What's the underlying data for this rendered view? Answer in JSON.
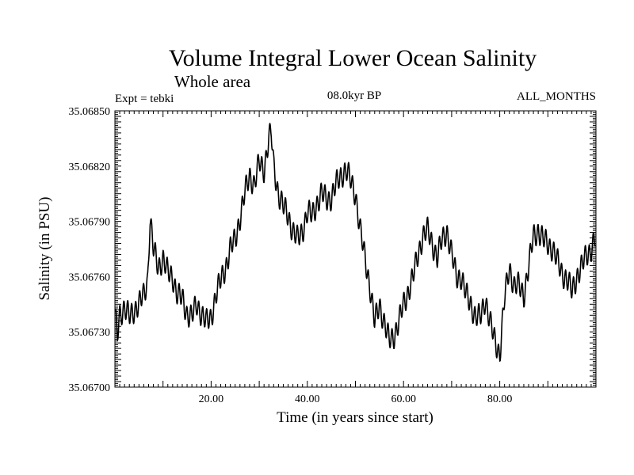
{
  "chart_data": {
    "type": "line",
    "title": "Volume Integral Lower Ocean Salinity",
    "subtitle": "Whole area",
    "experiment_label": "Expt = tebki",
    "period_label": "08.0kyr BP",
    "months_label": "ALL_MONTHS",
    "xlabel": "Time (in years since start)",
    "ylabel": "Salinity (in PSU)",
    "xlim": [
      0,
      100
    ],
    "ylim": [
      35.067,
      35.0685
    ],
    "x_ticks": [
      20,
      40,
      60,
      80
    ],
    "x_tick_labels": [
      "20.00",
      "40.00",
      "60.00",
      "80.00"
    ],
    "y_ticks": [
      35.067,
      35.0673,
      35.0676,
      35.0679,
      35.0682,
      35.0685
    ],
    "y_tick_labels": [
      "35.06700",
      "35.06730",
      "35.06760",
      "35.06790",
      "35.06820",
      "35.06850"
    ],
    "grid": false,
    "series": [
      {
        "name": "Salinity",
        "color": "#000000",
        "anchors_x": [
          0.2,
          0.5,
          1,
          2,
          3,
          4,
          5,
          6,
          6.8,
          7.3,
          8,
          9,
          10,
          11,
          12,
          13,
          14,
          15,
          16,
          17,
          18,
          19,
          20,
          21,
          22,
          23,
          24,
          25,
          26,
          27,
          28,
          29,
          30,
          31,
          32,
          32.5,
          33,
          34,
          35,
          36,
          37,
          38,
          39,
          40,
          41,
          42,
          43,
          44,
          45,
          46,
          47,
          48,
          49,
          50,
          51,
          52,
          53,
          54,
          55,
          56,
          57,
          58,
          59,
          60,
          61,
          62,
          63,
          64,
          65,
          66,
          67,
          68,
          69,
          70,
          71,
          72,
          73,
          74,
          75,
          76,
          77,
          78,
          79,
          80,
          81,
          82,
          83,
          84,
          85,
          86,
          87,
          88,
          89,
          90,
          91,
          92,
          93,
          94,
          95,
          96,
          97,
          98,
          99,
          99.8
        ],
        "anchors_y": [
          35.06735,
          35.06728,
          35.0674,
          35.06743,
          35.06738,
          35.06742,
          35.06745,
          35.0675,
          35.06758,
          35.06792,
          35.06775,
          35.06765,
          35.0677,
          35.06762,
          35.0676,
          35.0675,
          35.06748,
          35.0674,
          35.06738,
          35.06745,
          35.0674,
          35.06735,
          35.06738,
          35.0675,
          35.06758,
          35.06765,
          35.06775,
          35.0678,
          35.06792,
          35.06805,
          35.06815,
          35.0681,
          35.06822,
          35.06818,
          35.06835,
          35.06838,
          35.0682,
          35.06805,
          35.06798,
          35.06793,
          35.06785,
          35.0678,
          35.06785,
          35.06795,
          35.06793,
          35.068,
          35.06805,
          35.06802,
          35.06803,
          35.0681,
          35.06815,
          35.06818,
          35.06812,
          35.06805,
          35.06785,
          35.0677,
          35.06755,
          35.06735,
          35.06745,
          35.06735,
          35.06725,
          35.06728,
          35.06735,
          35.06745,
          35.06752,
          35.0676,
          35.06772,
          35.06782,
          35.06785,
          35.06778,
          35.0677,
          35.0678,
          35.06785,
          35.06772,
          35.0676,
          35.0676,
          35.0675,
          35.06745,
          35.06738,
          35.06738,
          35.06748,
          35.06735,
          35.06725,
          35.06718,
          35.06748,
          35.06765,
          35.06755,
          35.06755,
          35.0675,
          35.06765,
          35.06782,
          35.06785,
          35.0678,
          35.06778,
          35.06775,
          35.06768,
          35.06762,
          35.06758,
          35.06752,
          35.0676,
          35.06765,
          35.06772,
          35.06775,
          35.0678
        ]
      }
    ]
  }
}
